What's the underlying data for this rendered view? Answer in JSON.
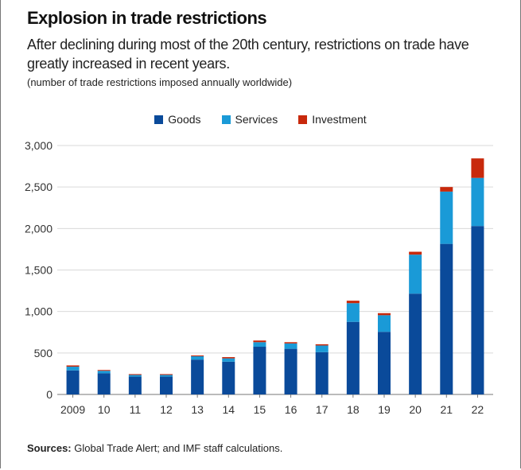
{
  "header": {
    "title": "Explosion in trade restrictions",
    "subtitle": "After declining during most of the 20th century, restrictions on trade have greatly increased in recent years.",
    "units": "(number of trade restrictions imposed annually worldwide)"
  },
  "source": {
    "label": "Sources:",
    "text": " Global Trade Alert; and IMF staff calculations."
  },
  "chart_data": {
    "type": "bar",
    "stacked": true,
    "title": "Explosion in trade restrictions",
    "ylabel": "number of trade restrictions imposed annually worldwide",
    "ylim": [
      0,
      3000
    ],
    "yticks": [
      0,
      500,
      1000,
      1500,
      2000,
      2500,
      3000
    ],
    "ytick_labels": [
      "0",
      "500",
      "1,000",
      "1,500",
      "2,000",
      "2,500",
      "3,000"
    ],
    "categories": [
      "2009",
      "10",
      "11",
      "12",
      "13",
      "14",
      "15",
      "16",
      "17",
      "18",
      "19",
      "20",
      "21",
      "22"
    ],
    "legend_position": "top-center",
    "grid": true,
    "series": [
      {
        "name": "Goods",
        "color": "#0a4a9a",
        "values": [
          290,
          255,
          215,
          215,
          420,
          395,
          575,
          550,
          510,
          875,
          755,
          1215,
          1815,
          2030
        ]
      },
      {
        "name": "Services",
        "color": "#1a9ad7",
        "values": [
          45,
          30,
          20,
          20,
          40,
          40,
          55,
          65,
          80,
          225,
          200,
          470,
          630,
          580
        ]
      },
      {
        "name": "Investment",
        "color": "#c8290c",
        "values": [
          15,
          10,
          10,
          10,
          10,
          15,
          20,
          15,
          15,
          30,
          25,
          35,
          55,
          235
        ]
      }
    ]
  }
}
